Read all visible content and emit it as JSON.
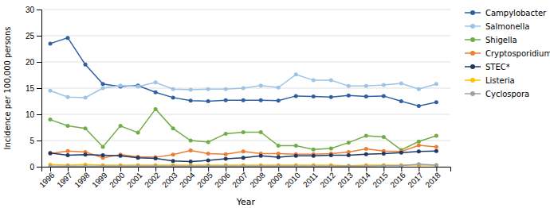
{
  "chart_data": {
    "type": "line",
    "xlabel": "Year",
    "ylabel": "Incidence per 100,000 persons",
    "x": [
      1996,
      1997,
      1998,
      1999,
      2000,
      2001,
      2002,
      2003,
      2004,
      2005,
      2006,
      2007,
      2008,
      2009,
      2010,
      2011,
      2012,
      2013,
      2014,
      2015,
      2016,
      2017,
      2018
    ],
    "series": [
      {
        "name": "Campylobacter",
        "color": "#2e5fa3",
        "values": [
          23.5,
          24.6,
          19.5,
          15.8,
          15.3,
          15.5,
          14.2,
          13.2,
          12.6,
          12.5,
          12.7,
          12.7,
          12.7,
          12.6,
          13.5,
          13.4,
          13.3,
          13.6,
          13.4,
          13.5,
          12.5,
          11.6,
          12.3
        ]
      },
      {
        "name": "Salmonella",
        "color": "#9dc3e6",
        "values": [
          14.5,
          13.3,
          13.2,
          15.0,
          15.5,
          15.3,
          16.1,
          14.8,
          14.7,
          14.8,
          14.8,
          15.0,
          15.5,
          15.1,
          17.6,
          16.5,
          16.5,
          15.4,
          15.4,
          15.6,
          15.9,
          14.8,
          15.8
        ]
      },
      {
        "name": "Shigella",
        "color": "#70ad47",
        "values": [
          9.0,
          7.8,
          7.3,
          3.8,
          7.8,
          6.5,
          11.0,
          7.3,
          5.0,
          4.7,
          6.3,
          6.6,
          6.6,
          4.0,
          4.0,
          3.3,
          3.5,
          4.6,
          5.9,
          5.7,
          3.2,
          4.8,
          5.9
        ]
      },
      {
        "name": "Cryptosporidium",
        "color": "#ed7d31",
        "values": [
          2.5,
          3.0,
          2.8,
          1.7,
          2.3,
          1.9,
          1.8,
          2.3,
          3.1,
          2.5,
          2.4,
          2.9,
          2.5,
          2.5,
          2.4,
          2.4,
          2.5,
          2.8,
          3.4,
          3.0,
          2.9,
          4.1,
          3.8
        ]
      },
      {
        "name": "STEC*",
        "color": "#1f3864",
        "values": [
          2.6,
          2.2,
          2.3,
          2.2,
          2.1,
          1.7,
          1.6,
          1.1,
          1.0,
          1.2,
          1.5,
          1.7,
          2.1,
          1.8,
          2.1,
          2.1,
          2.2,
          2.2,
          2.4,
          2.5,
          2.7,
          2.9,
          3.0
        ]
      },
      {
        "name": "Listeria",
        "color": "#ffc000",
        "values": [
          0.4,
          0.3,
          0.4,
          0.3,
          0.3,
          0.3,
          0.3,
          0.3,
          0.3,
          0.3,
          0.3,
          0.3,
          0.3,
          0.3,
          0.3,
          0.3,
          0.3,
          0.2,
          0.3,
          0.3,
          0.3,
          0.3,
          0.3
        ]
      },
      {
        "name": "Cyclospora",
        "color": "#a0a0a0",
        "values": [
          0.1,
          0.1,
          0.1,
          0.1,
          0.1,
          0.1,
          0.1,
          0.1,
          0.1,
          0.1,
          0.1,
          0.1,
          0.1,
          0.1,
          0.1,
          0.1,
          0.1,
          0.1,
          0.1,
          0.2,
          0.2,
          0.5,
          0.3
        ]
      }
    ],
    "xlim": [
      1995.5,
      2018.8
    ],
    "xticks": [
      1996,
      1997,
      1998,
      1999,
      2000,
      2001,
      2002,
      2003,
      2004,
      2005,
      2006,
      2007,
      2008,
      2009,
      2010,
      2011,
      2012,
      2013,
      2014,
      2015,
      2016,
      2017,
      2018
    ],
    "ylim": [
      0,
      30
    ],
    "yticks": [
      0,
      5,
      10,
      15,
      20,
      25,
      30
    ],
    "grid": true,
    "legend": "right",
    "marker": "circle"
  }
}
